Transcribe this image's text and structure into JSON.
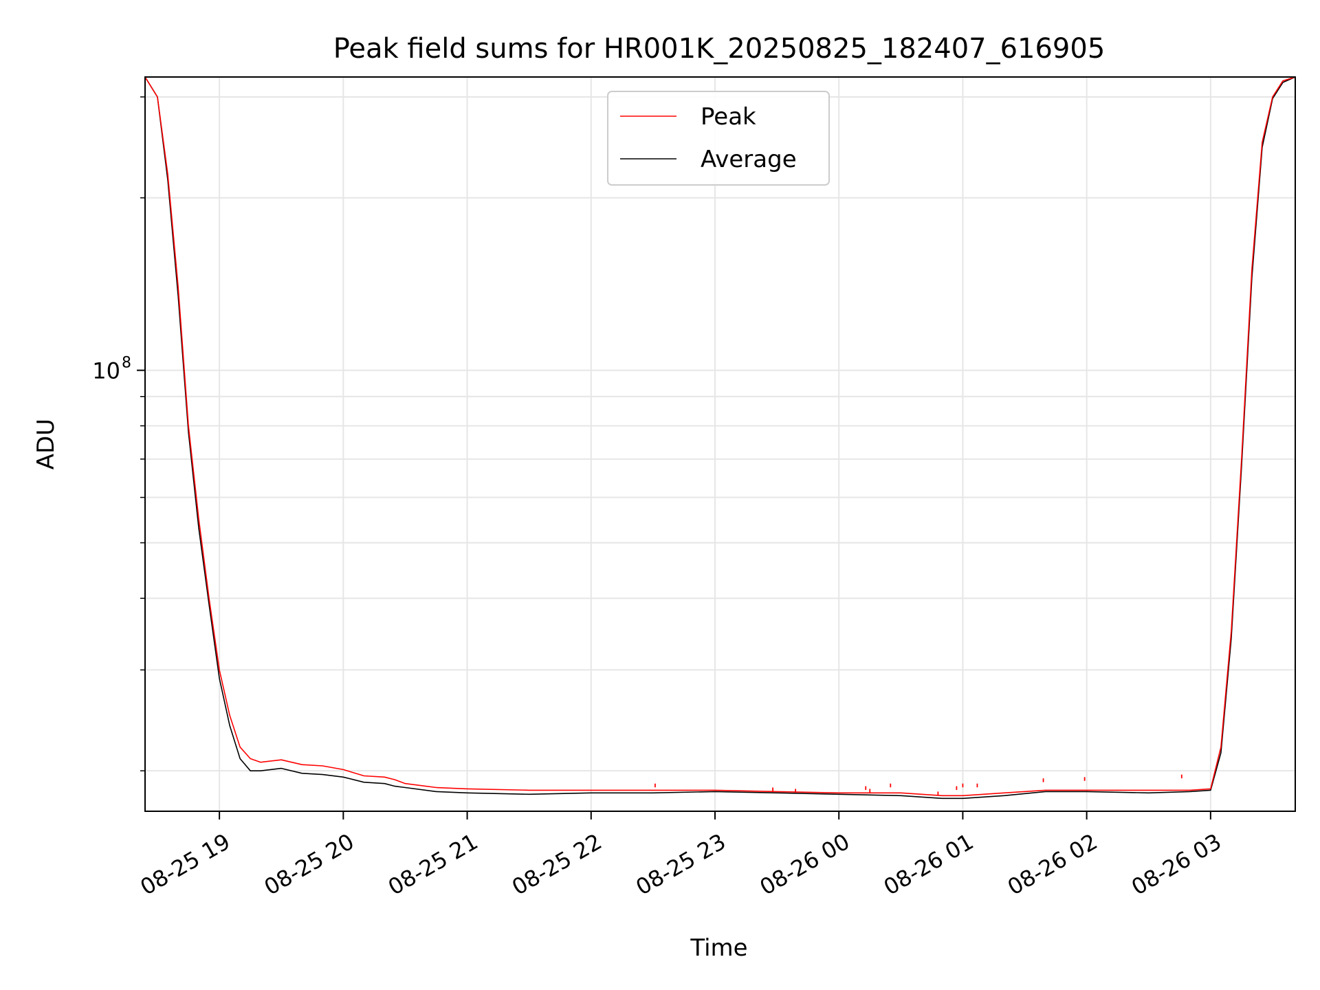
{
  "chart_data": {
    "type": "line",
    "title": "Peak field sums for HR001K_20250825_182407_616905",
    "xlabel": "Time",
    "ylabel": "ADU",
    "yscale": "log",
    "ylim": [
      17000000,
      325000000
    ],
    "xlim": [
      "2025-08-25 18:24",
      "2025-08-26 03:41"
    ],
    "grid": true,
    "legend": "upper center",
    "x_tick_labels": [
      "08-25 19",
      "08-25 20",
      "08-25 21",
      "08-25 22",
      "08-25 23",
      "08-26 00",
      "08-26 01",
      "08-26 02",
      "08-26 03"
    ],
    "x_ticks": [
      "2025-08-25 19:00",
      "2025-08-25 20:00",
      "2025-08-25 21:00",
      "2025-08-25 22:00",
      "2025-08-25 23:00",
      "2025-08-26 00:00",
      "2025-08-26 01:00",
      "2025-08-26 02:00",
      "2025-08-26 03:00"
    ],
    "y_tick_labels": [
      {
        "base": "10",
        "exp": "8"
      }
    ],
    "y_ticks": [
      100000000
    ],
    "y_minor_ticks": [
      20000000,
      30000000,
      40000000,
      50000000,
      60000000,
      70000000,
      80000000,
      90000000,
      200000000,
      300000000
    ],
    "series": [
      {
        "name": "Peak",
        "color": "#ff0000",
        "x": [
          "2025-08-25 18:24",
          "2025-08-25 18:30",
          "2025-08-25 18:35",
          "2025-08-25 18:40",
          "2025-08-25 18:45",
          "2025-08-25 18:50",
          "2025-08-25 18:55",
          "2025-08-25 19:00",
          "2025-08-25 19:05",
          "2025-08-25 19:10",
          "2025-08-25 19:15",
          "2025-08-25 19:20",
          "2025-08-25 19:30",
          "2025-08-25 19:40",
          "2025-08-25 19:50",
          "2025-08-25 20:00",
          "2025-08-25 20:10",
          "2025-08-25 20:20",
          "2025-08-25 20:25",
          "2025-08-25 20:30",
          "2025-08-25 20:45",
          "2025-08-25 21:00",
          "2025-08-25 21:30",
          "2025-08-25 22:00",
          "2025-08-25 22:30",
          "2025-08-25 23:00",
          "2025-08-25 23:30",
          "2025-08-26 00:00",
          "2025-08-26 00:30",
          "2025-08-26 00:50",
          "2025-08-26 01:00",
          "2025-08-26 01:20",
          "2025-08-26 01:40",
          "2025-08-26 02:00",
          "2025-08-26 02:30",
          "2025-08-26 02:50",
          "2025-08-26 03:00",
          "2025-08-26 03:05",
          "2025-08-26 03:10",
          "2025-08-26 03:15",
          "2025-08-26 03:20",
          "2025-08-26 03:25",
          "2025-08-26 03:30",
          "2025-08-26 03:35",
          "2025-08-26 03:41"
        ],
        "values": [
          325000000,
          300000000,
          220000000,
          140000000,
          80000000,
          55000000,
          40000000,
          30000000,
          25000000,
          22000000,
          21000000,
          20700000,
          20900000,
          20500000,
          20400000,
          20100000,
          19600000,
          19500000,
          19300000,
          19000000,
          18700000,
          18600000,
          18500000,
          18500000,
          18500000,
          18500000,
          18400000,
          18300000,
          18300000,
          18100000,
          18100000,
          18300000,
          18500000,
          18500000,
          18500000,
          18500000,
          18600000,
          22000000,
          35000000,
          70000000,
          150000000,
          250000000,
          300000000,
          320000000,
          325000000
        ]
      },
      {
        "name": "Average",
        "color": "#000000",
        "x": [
          "2025-08-25 18:24",
          "2025-08-25 18:30",
          "2025-08-25 18:35",
          "2025-08-25 18:40",
          "2025-08-25 18:45",
          "2025-08-25 18:50",
          "2025-08-25 18:55",
          "2025-08-25 19:00",
          "2025-08-25 19:05",
          "2025-08-25 19:10",
          "2025-08-25 19:15",
          "2025-08-25 19:20",
          "2025-08-25 19:30",
          "2025-08-25 19:40",
          "2025-08-25 19:50",
          "2025-08-25 20:00",
          "2025-08-25 20:10",
          "2025-08-25 20:20",
          "2025-08-25 20:25",
          "2025-08-25 20:30",
          "2025-08-25 20:45",
          "2025-08-25 21:00",
          "2025-08-25 21:30",
          "2025-08-25 22:00",
          "2025-08-25 22:30",
          "2025-08-25 23:00",
          "2025-08-25 23:30",
          "2025-08-26 00:00",
          "2025-08-26 00:30",
          "2025-08-26 00:50",
          "2025-08-26 01:00",
          "2025-08-26 01:20",
          "2025-08-26 01:40",
          "2025-08-26 02:00",
          "2025-08-26 02:30",
          "2025-08-26 02:50",
          "2025-08-26 03:00",
          "2025-08-26 03:05",
          "2025-08-26 03:10",
          "2025-08-26 03:15",
          "2025-08-26 03:20",
          "2025-08-26 03:25",
          "2025-08-26 03:30",
          "2025-08-26 03:35",
          "2025-08-26 03:41"
        ],
        "values": [
          325000000,
          300000000,
          215000000,
          135000000,
          78000000,
          53000000,
          39000000,
          29000000,
          24000000,
          21000000,
          20000000,
          20000000,
          20200000,
          19800000,
          19700000,
          19500000,
          19100000,
          19000000,
          18800000,
          18700000,
          18400000,
          18300000,
          18200000,
          18300000,
          18300000,
          18400000,
          18300000,
          18200000,
          18100000,
          17900000,
          17900000,
          18100000,
          18400000,
          18400000,
          18300000,
          18400000,
          18500000,
          21500000,
          34000000,
          68000000,
          145000000,
          245000000,
          298000000,
          318000000,
          325000000
        ]
      }
    ],
    "spikes": {
      "series": "Peak",
      "x": [
        "2025-08-25 22:31",
        "2025-08-25 23:28",
        "2025-08-25 23:39",
        "2025-08-26 00:13",
        "2025-08-26 00:15",
        "2025-08-26 00:25",
        "2025-08-26 00:48",
        "2025-08-26 00:57",
        "2025-08-26 01:00",
        "2025-08-26 01:07",
        "2025-08-26 01:39",
        "2025-08-26 01:59",
        "2025-08-26 02:46"
      ],
      "values": [
        19000000,
        18700000,
        18600000,
        18800000,
        18600000,
        19000000,
        18400000,
        18800000,
        19000000,
        19000000,
        19400000,
        19500000,
        19700000
      ]
    }
  }
}
